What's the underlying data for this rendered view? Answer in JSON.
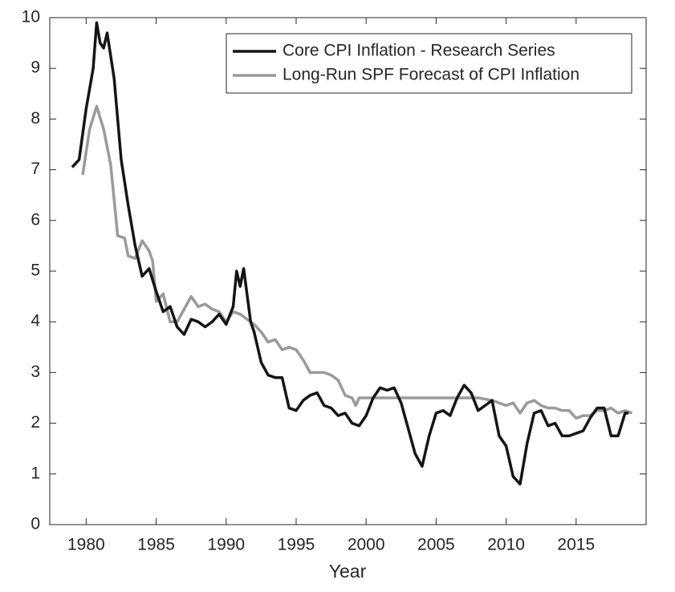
{
  "chart_data": {
    "type": "line",
    "x_label": "Year",
    "legend": "upper right",
    "grid": false,
    "xlim": [
      1977.4,
      2020
    ],
    "ylim": [
      0,
      10
    ],
    "xticks": [
      1980,
      1985,
      1990,
      1995,
      2000,
      2005,
      2010,
      2015
    ],
    "yticks": [
      0,
      1,
      2,
      3,
      4,
      5,
      6,
      7,
      8,
      9,
      10
    ],
    "series": [
      {
        "name": "Core CPI Inflation - Research Series",
        "color": "#151515",
        "x": [
          1979,
          1979.5,
          1980,
          1980.5,
          1980.75,
          1981,
          1981.25,
          1981.5,
          1982,
          1982.5,
          1983,
          1983.5,
          1984,
          1984.5,
          1985,
          1985.5,
          1986,
          1986.5,
          1987,
          1987.5,
          1988,
          1988.5,
          1989,
          1989.5,
          1990,
          1990.5,
          1990.75,
          1991,
          1991.25,
          1991.75,
          1992,
          1992.5,
          1993,
          1993.5,
          1994,
          1994.5,
          1995,
          1995.5,
          1996,
          1996.5,
          1997,
          1997.5,
          1998,
          1998.5,
          1999,
          1999.5,
          2000,
          2000.5,
          2001,
          2001.5,
          2002,
          2002.5,
          2003,
          2003.5,
          2004,
          2004.5,
          2005,
          2005.5,
          2006,
          2006.5,
          2007,
          2007.5,
          2008,
          2008.5,
          2009,
          2009.5,
          2010,
          2010.5,
          2011,
          2011.5,
          2012,
          2012.5,
          2013,
          2013.5,
          2014,
          2014.5,
          2015,
          2015.5,
          2016,
          2016.5,
          2017,
          2017.5,
          2018,
          2018.5,
          2018.75
        ],
        "values": [
          7.05,
          7.2,
          8.2,
          9.0,
          9.9,
          9.5,
          9.4,
          9.7,
          8.8,
          7.2,
          6.3,
          5.5,
          4.9,
          5.05,
          4.6,
          4.2,
          4.3,
          3.9,
          3.75,
          4.05,
          4.0,
          3.9,
          4.0,
          4.15,
          3.95,
          4.3,
          5.0,
          4.7,
          5.05,
          4.0,
          3.8,
          3.2,
          2.95,
          2.9,
          2.9,
          2.3,
          2.25,
          2.45,
          2.55,
          2.6,
          2.35,
          2.3,
          2.15,
          2.2,
          2.0,
          1.95,
          2.15,
          2.5,
          2.7,
          2.65,
          2.7,
          2.4,
          1.9,
          1.4,
          1.15,
          1.75,
          2.2,
          2.25,
          2.15,
          2.5,
          2.75,
          2.6,
          2.25,
          2.35,
          2.45,
          1.75,
          1.55,
          0.95,
          0.8,
          1.6,
          2.2,
          2.25,
          1.95,
          2.0,
          1.75,
          1.75,
          1.8,
          1.85,
          2.1,
          2.3,
          2.3,
          1.75,
          1.75,
          2.2,
          2.2
        ]
      },
      {
        "name": "Long-Run SPF Forecast of CPI Inflation",
        "color": "#9a9a9a",
        "x": [
          1979.75,
          1980.25,
          1980.75,
          1981.25,
          1981.75,
          1982.25,
          1982.75,
          1983,
          1983.5,
          1984,
          1984.5,
          1984.75,
          1985,
          1985.5,
          1986,
          1986.5,
          1987,
          1987.5,
          1988,
          1988.5,
          1989,
          1989.5,
          1990,
          1990.5,
          1991,
          1991.5,
          1992,
          1992.5,
          1993,
          1993.5,
          1994,
          1994.5,
          1995,
          1995.5,
          1996,
          1997,
          1997.5,
          1998,
          1998.5,
          1999,
          1999.25,
          1999.5,
          2004.5,
          2008,
          2009,
          2010,
          2010.5,
          2011,
          2011.5,
          2012,
          2012.5,
          2013,
          2013.5,
          2014,
          2014.5,
          2015,
          2015.5,
          2016,
          2016.5,
          2017,
          2017.5,
          2018,
          2018.5,
          2019
        ],
        "values": [
          6.9,
          7.8,
          8.25,
          7.8,
          7.1,
          5.7,
          5.65,
          5.3,
          5.25,
          5.6,
          5.4,
          5.2,
          4.4,
          4.55,
          4.0,
          4.0,
          4.25,
          4.5,
          4.3,
          4.35,
          4.25,
          4.2,
          4.0,
          4.2,
          4.15,
          4.05,
          3.95,
          3.8,
          3.6,
          3.65,
          3.45,
          3.5,
          3.45,
          3.25,
          3.0,
          3.0,
          2.95,
          2.85,
          2.55,
          2.5,
          2.35,
          2.5,
          2.5,
          2.5,
          2.45,
          2.35,
          2.4,
          2.2,
          2.4,
          2.45,
          2.35,
          2.3,
          2.3,
          2.25,
          2.25,
          2.1,
          2.15,
          2.15,
          2.25,
          2.25,
          2.3,
          2.2,
          2.25,
          2.2
        ]
      }
    ]
  }
}
